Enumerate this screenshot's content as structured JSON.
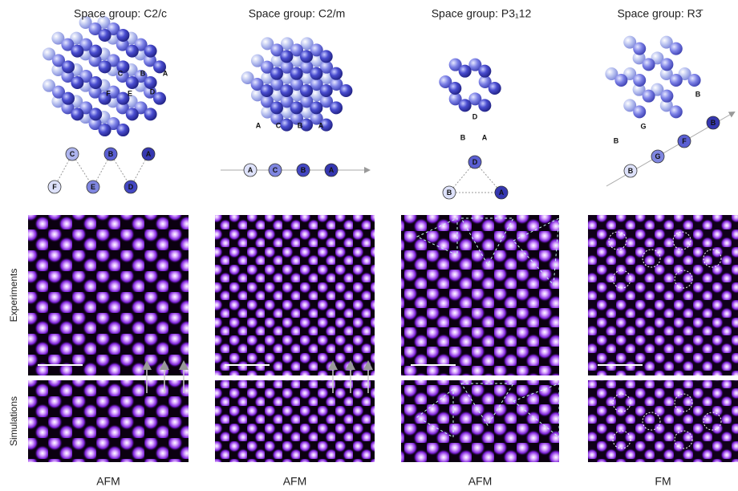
{
  "columns": [
    {
      "title": "Space group: C2/c",
      "structure_labels": [
        "C",
        "B",
        "A",
        "F",
        "E",
        "D"
      ],
      "sequence_labels": [
        "C",
        "B",
        "A",
        "F",
        "E",
        "D"
      ],
      "label": "AFM"
    },
    {
      "title": "Space group: C2/m",
      "structure_labels": [
        "A",
        "C",
        "B",
        "A"
      ],
      "sequence_labels": [
        "A",
        "C",
        "B",
        "A"
      ],
      "label": "AFM"
    },
    {
      "title": "Space group: P3₁12",
      "structure_labels": [
        "D",
        "B",
        "A"
      ],
      "sequence_labels": [
        "D",
        "B",
        "A"
      ],
      "label": "AFM"
    },
    {
      "title": "Space group: R3̄",
      "structure_labels": [
        "B",
        "G",
        "B"
      ],
      "sequence_labels": [
        "B",
        "G",
        "F",
        "B"
      ],
      "label": "FM"
    }
  ],
  "rows": [
    "Experiments",
    "Simulations"
  ]
}
